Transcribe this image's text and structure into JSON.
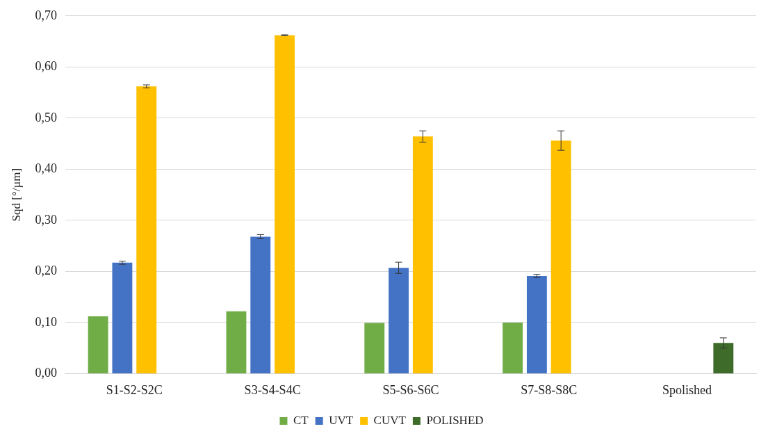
{
  "chart_data": {
    "type": "bar",
    "ylabel": "Sqd [°/µm]",
    "categories": [
      "S1-S2-S2C",
      "S3-S4-S4C",
      "S5-S6-S6C",
      "S7-S8-S8C",
      "Spolished"
    ],
    "series": [
      {
        "name": "CT",
        "color": "#70ad47",
        "values": [
          0.112,
          0.122,
          0.099,
          0.1,
          null
        ],
        "errors": [
          null,
          null,
          null,
          null,
          null
        ]
      },
      {
        "name": "UVT",
        "color": "#4472c4",
        "values": [
          0.217,
          0.268,
          0.207,
          0.191,
          null
        ],
        "errors": [
          0.003,
          0.004,
          0.011,
          0.003,
          null
        ]
      },
      {
        "name": "CUVT",
        "color": "#ffc000",
        "values": [
          0.562,
          0.662,
          0.464,
          0.456,
          null
        ],
        "errors": [
          0.003,
          0.001,
          0.011,
          0.019,
          null
        ]
      },
      {
        "name": "POLISHED",
        "color": "#3e6b2a",
        "values": [
          null,
          null,
          null,
          null,
          0.06
        ],
        "errors": [
          null,
          null,
          null,
          null,
          0.01
        ]
      }
    ],
    "ylim": [
      0,
      0.7
    ],
    "yticks": [
      {
        "value": 0,
        "label": "0,00"
      },
      {
        "value": 0.1,
        "label": "0,10"
      },
      {
        "value": 0.2,
        "label": "0,20"
      },
      {
        "value": 0.3,
        "label": "0,30"
      },
      {
        "value": 0.4,
        "label": "0,40"
      },
      {
        "value": 0.5,
        "label": "0,50"
      },
      {
        "value": 0.6,
        "label": "0,60"
      },
      {
        "value": 0.7,
        "label": "0,70"
      }
    ],
    "grid": "y",
    "legend": "bottom"
  }
}
